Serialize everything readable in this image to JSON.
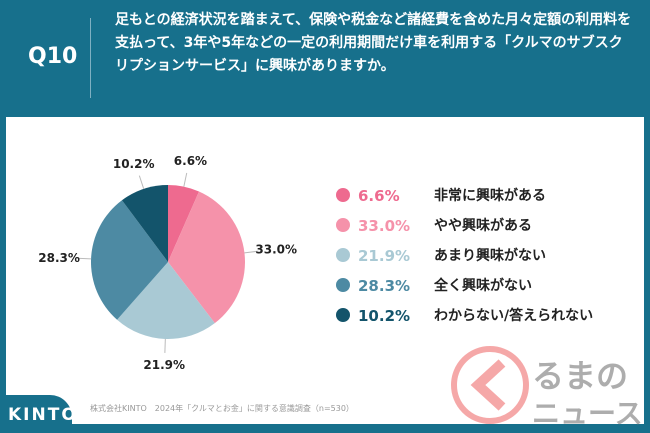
{
  "header": {
    "question_no": "Q10",
    "question": "足もとの経済状況を踏まえて、保険や税金など諸経費を含めた月々定額の利用料を支払って、3年や5年などの一定の利用期間だけ車を利用する「クルマのサブスクリプションサービス」に興味がありますか。"
  },
  "chart_data": {
    "type": "pie",
    "title": "",
    "start": "top, clockwise",
    "legend_position": "right",
    "slices": [
      {
        "label": "非常に興味がある",
        "value": 6.6,
        "value_label": "6.6%",
        "color": "#ee6a8f"
      },
      {
        "label": "やや興味がある",
        "value": 33.0,
        "value_label": "33.0%",
        "color": "#f592aa"
      },
      {
        "label": "あまり興味がない",
        "value": 21.9,
        "value_label": "21.9%",
        "color": "#a9c9d4"
      },
      {
        "label": "全く興味がない",
        "value": 28.3,
        "value_label": "28.3%",
        "color": "#4d8aa3"
      },
      {
        "label": "わからない/答えられない",
        "value": 10.2,
        "value_label": "10.2%",
        "color": "#13546b"
      }
    ]
  },
  "footer": {
    "brand": "KINTO",
    "source": "株式会社KINTO　2024年「クルマとお金」に関する意識調査（n=530）",
    "watermark": "くるまのニュース"
  }
}
